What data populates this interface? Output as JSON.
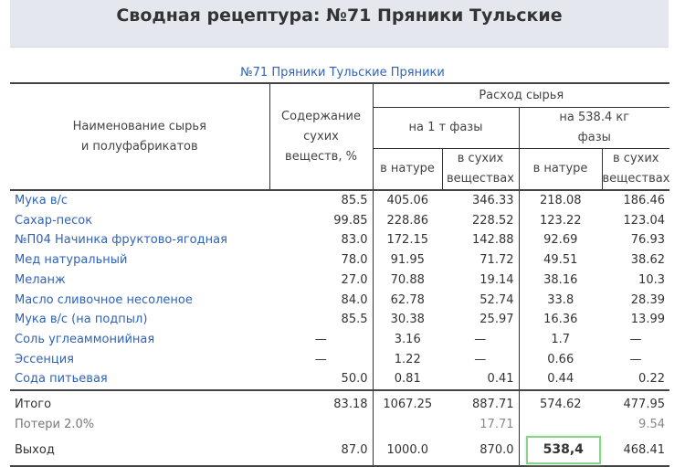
{
  "header": {
    "title": "Сводная рецептура: №71 Пряники Тульские"
  },
  "subtitle": "№71 Пряники Тульские Пряники",
  "columns": {
    "name_line1": "Наименование сырья",
    "name_line2": "и полуфабрикатов",
    "dry_line1": "Содержание",
    "dry_line2": "сухих",
    "dry_line3": "веществ, %",
    "consumption": "Расход сырья",
    "per_ton": "на 1 т фазы",
    "per_batch_line1": "на 538.4 кг",
    "per_batch_line2": "фазы",
    "natural": "в натуре",
    "dry_line_a": "в сухих",
    "dry_line_b": "веществах"
  },
  "rows": [
    {
      "name": "Мука в/с",
      "dry": "85.5",
      "t_nat": "405.06",
      "t_dry": "346.33",
      "b_nat": "218.08",
      "b_dry": "186.46"
    },
    {
      "name": "Сахар-песок",
      "dry": "99.85",
      "t_nat": "228.86",
      "t_dry": "228.52",
      "b_nat": "123.22",
      "b_dry": "123.04"
    },
    {
      "name": "№П04 Начинка фруктово-ягодная",
      "dry": "83.0",
      "t_nat": "172.15",
      "t_dry": "142.88",
      "b_nat": "92.69",
      "b_dry": "76.93"
    },
    {
      "name": "Мед натуральный",
      "dry": "78.0",
      "t_nat": "91.95",
      "t_dry": "71.72",
      "b_nat": "49.51",
      "b_dry": "38.62"
    },
    {
      "name": "Меланж",
      "dry": "27.0",
      "t_nat": "70.88",
      "t_dry": "19.14",
      "b_nat": "38.16",
      "b_dry": "10.3"
    },
    {
      "name": "Масло сливочное несоленое",
      "dry": "84.0",
      "t_nat": "62.78",
      "t_dry": "52.74",
      "b_nat": "33.8",
      "b_dry": "28.39"
    },
    {
      "name": "Мука в/с (на подпыл)",
      "dry": "85.5",
      "t_nat": "30.38",
      "t_dry": "25.97",
      "b_nat": "16.36",
      "b_dry": "13.99"
    },
    {
      "name": "Соль углеаммонийная",
      "dry": "—",
      "t_nat": "3.16",
      "t_dry": "—",
      "b_nat": "1.7",
      "b_dry": "—"
    },
    {
      "name": "Эссенция",
      "dry": "—",
      "t_nat": "1.22",
      "t_dry": "—",
      "b_nat": "0.66",
      "b_dry": "—"
    },
    {
      "name": "Сода питьевая",
      "dry": "50.0",
      "t_nat": "0.81",
      "t_dry": "0.41",
      "b_nat": "0.44",
      "b_dry": "0.22"
    }
  ],
  "total": {
    "name": "Итого",
    "dry": "83.18",
    "t_nat": "1067.25",
    "t_dry": "887.71",
    "b_nat": "574.62",
    "b_dry": "477.95"
  },
  "losses": {
    "name": "Потери 2.0%",
    "t_dry": "17.71",
    "b_dry": "9.54"
  },
  "output": {
    "name": "Выход",
    "dry": "87.0",
    "t_nat": "1000.0",
    "t_dry": "870.0",
    "b_nat_input": "538,4",
    "b_dry": "468.41"
  }
}
